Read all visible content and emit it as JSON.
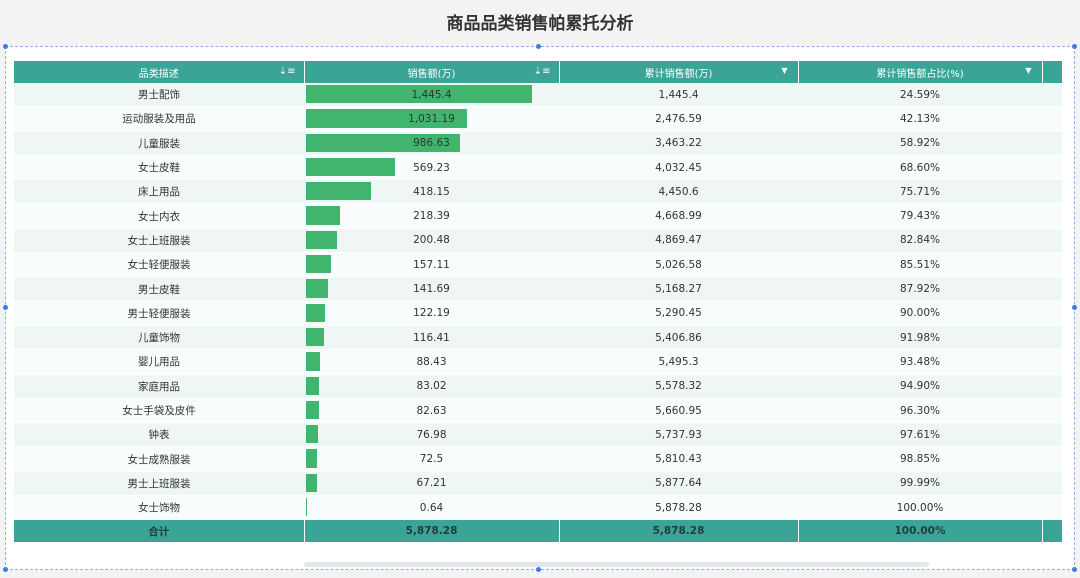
{
  "title": "商品品类销售帕累托分析",
  "headers": {
    "category": "品类描述",
    "sales": "销售额(万)",
    "cumulative": "累计销售额(万)",
    "ratio": "累计销售额占比(%)"
  },
  "rows": [
    {
      "category": "男士配饰",
      "sales": "1,445.4",
      "sales_value": 1445.4,
      "cumulative": "1,445.4",
      "ratio": "24.59%"
    },
    {
      "category": "运动服装及用品",
      "sales": "1,031.19",
      "sales_value": 1031.19,
      "cumulative": "2,476.59",
      "ratio": "42.13%"
    },
    {
      "category": "儿童服装",
      "sales": "986.63",
      "sales_value": 986.63,
      "cumulative": "3,463.22",
      "ratio": "58.92%"
    },
    {
      "category": "女士皮鞋",
      "sales": "569.23",
      "sales_value": 569.23,
      "cumulative": "4,032.45",
      "ratio": "68.60%"
    },
    {
      "category": "床上用品",
      "sales": "418.15",
      "sales_value": 418.15,
      "cumulative": "4,450.6",
      "ratio": "75.71%"
    },
    {
      "category": "女士内衣",
      "sales": "218.39",
      "sales_value": 218.39,
      "cumulative": "4,668.99",
      "ratio": "79.43%"
    },
    {
      "category": "女士上班服装",
      "sales": "200.48",
      "sales_value": 200.48,
      "cumulative": "4,869.47",
      "ratio": "82.84%"
    },
    {
      "category": "女士轻便服装",
      "sales": "157.11",
      "sales_value": 157.11,
      "cumulative": "5,026.58",
      "ratio": "85.51%"
    },
    {
      "category": "男士皮鞋",
      "sales": "141.69",
      "sales_value": 141.69,
      "cumulative": "5,168.27",
      "ratio": "87.92%"
    },
    {
      "category": "男士轻便服装",
      "sales": "122.19",
      "sales_value": 122.19,
      "cumulative": "5,290.45",
      "ratio": "90.00%"
    },
    {
      "category": "儿童饰物",
      "sales": "116.41",
      "sales_value": 116.41,
      "cumulative": "5,406.86",
      "ratio": "91.98%"
    },
    {
      "category": "婴儿用品",
      "sales": "88.43",
      "sales_value": 88.43,
      "cumulative": "5,495.3",
      "ratio": "93.48%"
    },
    {
      "category": "家庭用品",
      "sales": "83.02",
      "sales_value": 83.02,
      "cumulative": "5,578.32",
      "ratio": "94.90%"
    },
    {
      "category": "女士手袋及皮件",
      "sales": "82.63",
      "sales_value": 82.63,
      "cumulative": "5,660.95",
      "ratio": "96.30%"
    },
    {
      "category": "钟表",
      "sales": "76.98",
      "sales_value": 76.98,
      "cumulative": "5,737.93",
      "ratio": "97.61%"
    },
    {
      "category": "女士成熟服装",
      "sales": "72.5",
      "sales_value": 72.5,
      "cumulative": "5,810.43",
      "ratio": "98.85%"
    },
    {
      "category": "男士上班服装",
      "sales": "67.21",
      "sales_value": 67.21,
      "cumulative": "5,877.64",
      "ratio": "99.99%"
    },
    {
      "category": "女士饰物",
      "sales": "0.64",
      "sales_value": 0.64,
      "cumulative": "5,878.28",
      "ratio": "100.00%"
    }
  ],
  "total": {
    "label": "合计",
    "sales": "5,878.28",
    "cumulative": "5,878.28",
    "ratio": "100.00%"
  },
  "bar_max": 1445.4,
  "colors": {
    "header": "#3aa596",
    "bar": "#41b56e"
  }
}
